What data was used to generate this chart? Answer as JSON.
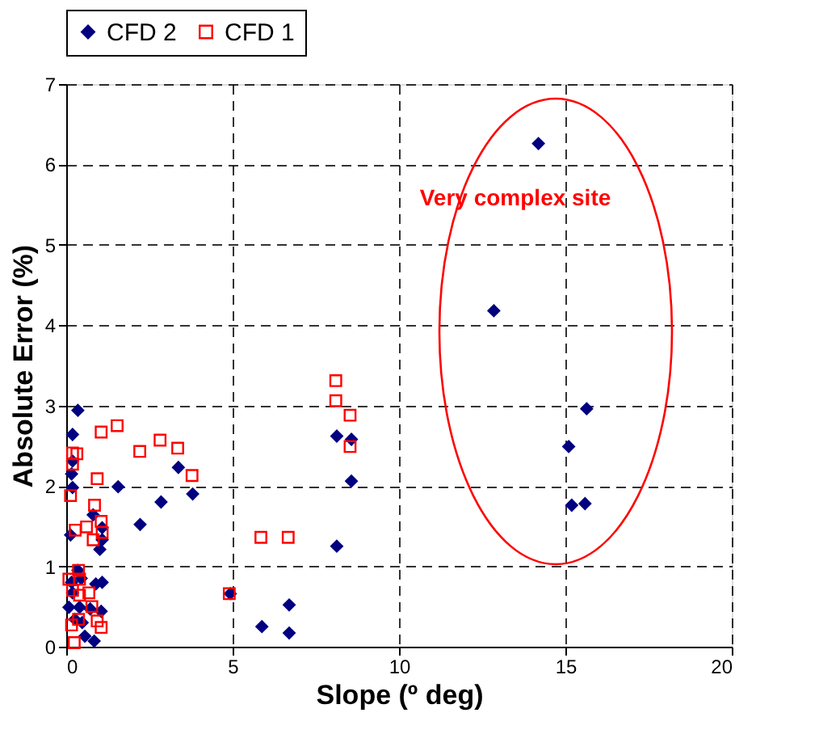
{
  "chart_data": {
    "type": "scatter",
    "xlabel": "Slope (º deg)",
    "ylabel": "Absolute Error (%)",
    "xlim": [
      0,
      20
    ],
    "xticks": [
      0,
      5,
      10,
      15,
      20
    ],
    "ylim": [
      0,
      7
    ],
    "yticks": [
      0,
      1,
      2,
      3,
      4,
      5,
      6,
      7
    ],
    "grid": true,
    "legend": "top",
    "annotations": [
      "Very complex site"
    ],
    "series": [
      {
        "name": "CFD 2",
        "color": "#000080",
        "marker": "diamond",
        "x": [
          14.19,
          12.85,
          15.64,
          15.1,
          15.19,
          15.59,
          8.13,
          8.57,
          8.57,
          8.13,
          4.93,
          6.7,
          5.88,
          6.7,
          0.35,
          0.19,
          0.19,
          0.16,
          0.19,
          1.56,
          3.37,
          2.85,
          3.8,
          2.22,
          0.81,
          1.08,
          1.08,
          1.01,
          0.13,
          0.35,
          0.16,
          1.08,
          0.89,
          0.45,
          0.19,
          0.4,
          1.05,
          0.72,
          0.26,
          0.48,
          0.56,
          0.84,
          0.08
        ],
        "values": [
          6.26,
          4.18,
          2.96,
          2.49,
          1.76,
          1.78,
          2.62,
          2.58,
          2.06,
          1.25,
          0.66,
          0.52,
          0.25,
          0.17,
          2.94,
          2.64,
          2.31,
          2.15,
          1.98,
          1.99,
          2.23,
          1.8,
          1.9,
          1.52,
          1.64,
          1.48,
          1.33,
          1.21,
          1.39,
          0.95,
          0.8,
          0.8,
          0.78,
          0.85,
          0.67,
          0.49,
          0.44,
          0.47,
          0.34,
          0.3,
          0.13,
          0.07,
          0.49
        ]
      },
      {
        "name": "CFD 1",
        "color": "#ff0000",
        "marker": "square",
        "x": [
          8.1,
          8.1,
          8.53,
          8.53,
          5.85,
          6.67,
          4.9,
          1.05,
          1.53,
          2.21,
          2.82,
          3.35,
          3.78,
          0.19,
          0.32,
          0.19,
          0.93,
          0.13,
          0.85,
          1.05,
          0.61,
          0.27,
          0.81,
          1.08,
          0.37,
          0.08,
          0.4,
          0.19,
          0.68,
          0.4,
          0.77,
          0.37,
          0.93,
          1.05,
          0.16,
          0.24
        ],
        "values": [
          3.31,
          3.06,
          2.88,
          2.49,
          1.36,
          1.36,
          0.66,
          2.67,
          2.75,
          2.43,
          2.57,
          2.47,
          2.13,
          2.41,
          2.4,
          2.27,
          2.09,
          1.88,
          1.76,
          1.56,
          1.49,
          1.45,
          1.33,
          1.42,
          0.95,
          0.84,
          0.84,
          0.7,
          0.67,
          0.64,
          0.5,
          0.34,
          0.32,
          0.24,
          0.27,
          0.05
        ]
      }
    ]
  }
}
